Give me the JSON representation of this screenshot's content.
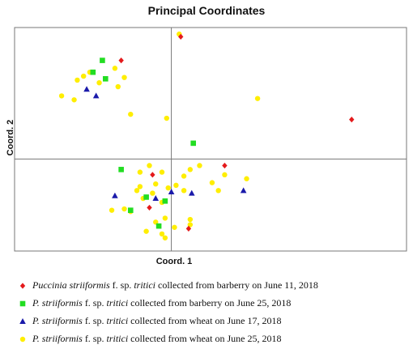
{
  "chart_data": {
    "type": "scatter",
    "title": "Principal Coordinates",
    "xlabel": "Coord. 1",
    "ylabel": "Coord. 2",
    "xlim": [
      -1.0,
      1.5
    ],
    "ylim": [
      -0.7,
      1.0
    ],
    "grid": false,
    "legend_position": "bottom",
    "series": [
      {
        "name_italic": "Puccinia striiformis",
        "name_rest": " f. sp. ",
        "name_italic2": "tritici",
        "name_tail": " collected from barberry on June 11, 2018",
        "color": "#e41a1c",
        "marker": "diamond",
        "x": [
          -0.32,
          0.06,
          -0.12,
          0.34,
          -0.14,
          1.15,
          0.11
        ],
        "y": [
          0.75,
          0.93,
          -0.12,
          -0.05,
          -0.37,
          0.3,
          -0.53
        ]
      },
      {
        "name_italic": "P. striiformis",
        "name_rest": " f. sp. ",
        "name_italic2": "tritici",
        "name_tail": " collected from barberry on June 25, 2018",
        "color": "#22dd22",
        "marker": "square",
        "x": [
          -0.44,
          -0.5,
          -0.42,
          0.14,
          -0.32,
          -0.16,
          -0.04,
          -0.26,
          -0.08
        ],
        "y": [
          0.75,
          0.66,
          0.61,
          0.12,
          -0.08,
          -0.29,
          -0.32,
          -0.39,
          -0.51
        ]
      },
      {
        "name_italic": "P. striiformis",
        "name_rest": " f. sp. ",
        "name_italic2": "tritici",
        "name_tail": " collected from wheat on June 17, 2018",
        "color": "#1a1aaa",
        "marker": "triangle",
        "x": [
          -0.54,
          -0.48,
          0.0,
          0.13,
          -0.36,
          -0.1,
          0.46
        ],
        "y": [
          0.53,
          0.48,
          -0.25,
          -0.26,
          -0.28,
          -0.3,
          -0.24
        ]
      },
      {
        "name_italic": "P. striiformis",
        "name_rest": " f. sp. ",
        "name_italic2": "tritici",
        "name_tail": " collected from wheat on June 25, 2018",
        "color": "#ffee00",
        "marker": "circle",
        "x": [
          -0.6,
          -0.56,
          -0.52,
          -0.36,
          -0.3,
          -0.46,
          -0.34,
          -0.7,
          -0.62,
          -0.26,
          -0.03,
          0.05,
          0.55,
          -0.14,
          -0.06,
          0.12,
          0.18,
          0.34,
          0.08,
          0.03,
          -0.1,
          -0.2,
          -0.22,
          -0.12,
          -0.02,
          0.08,
          -0.06,
          -0.18,
          -0.3,
          -0.38,
          -0.26,
          0.26,
          0.3,
          0.48,
          -0.04,
          0.12,
          0.12,
          0.02,
          -0.1,
          -0.06,
          -0.04,
          -0.16,
          -0.2
        ],
        "y": [
          0.6,
          0.63,
          0.66,
          0.69,
          0.62,
          0.58,
          0.55,
          0.48,
          0.45,
          0.34,
          0.31,
          0.95,
          0.46,
          -0.05,
          -0.1,
          -0.08,
          -0.05,
          -0.12,
          -0.13,
          -0.2,
          -0.19,
          -0.21,
          -0.24,
          -0.26,
          -0.22,
          -0.24,
          -0.33,
          -0.3,
          -0.38,
          -0.39,
          -0.4,
          -0.18,
          -0.24,
          -0.15,
          -0.45,
          -0.46,
          -0.5,
          -0.52,
          -0.48,
          -0.57,
          -0.6,
          -0.55,
          -0.1
        ]
      }
    ]
  }
}
